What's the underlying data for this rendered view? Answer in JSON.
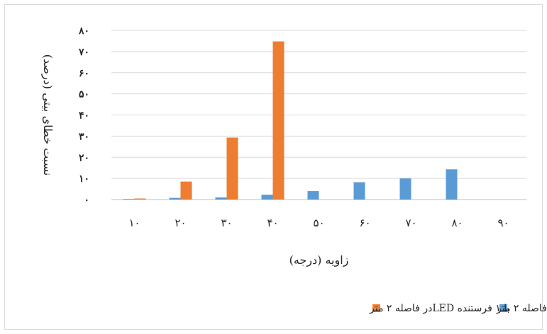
{
  "chart_data": {
    "type": "bar",
    "title": "",
    "xlabel": "زاویه (درجه)",
    "ylabel": "نسبت خطای بیتی (درصد)",
    "categories": [
      "۱۰",
      "۲۰",
      "۳۰",
      "۴۰",
      "۵۰",
      "۶۰",
      "۷۰",
      "۸۰",
      "۹۰"
    ],
    "y_tick_labels": [
      "۰",
      "۱۰",
      "۲۰",
      "۳۰",
      "۴۰",
      "۵۰",
      "۶۰",
      "۷۰",
      "۸۰"
    ],
    "ylim": [
      0,
      80
    ],
    "grid": true,
    "legend_position": "bottom",
    "series": [
      {
        "name": "با ۵ فرستنده LEDدر فاصله ۲ متر",
        "color": "#5b9bd5",
        "values": [
          0.3,
          0.8,
          1.0,
          2.3,
          4.0,
          8.2,
          10.0,
          14.3,
          0
        ]
      },
      {
        "name": "با ۱ فرستنده LEDدر فاصله ۲ متر",
        "color": "#ed7d31",
        "values": [
          0.5,
          8.5,
          29.3,
          74.8,
          0,
          0,
          0,
          0,
          0
        ]
      }
    ]
  }
}
